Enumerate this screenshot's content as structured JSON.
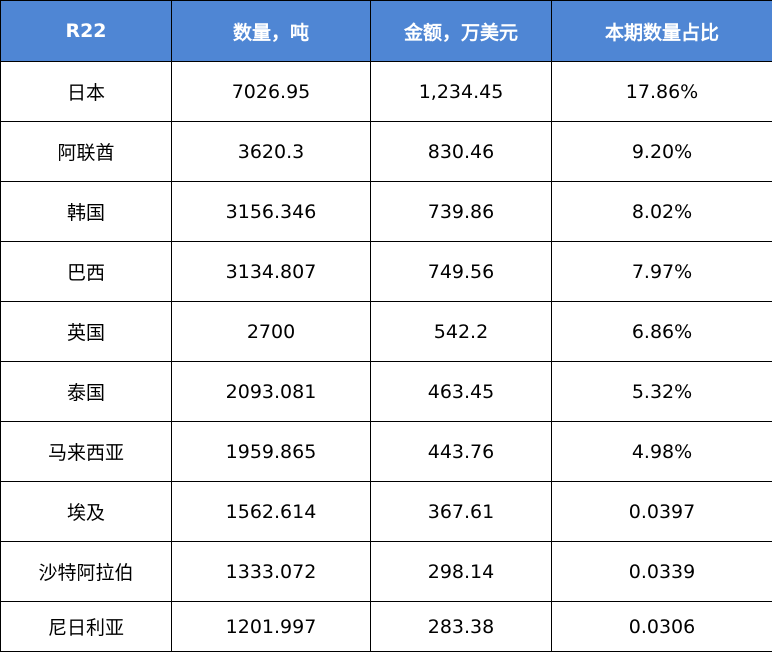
{
  "table": {
    "headers": [
      "R22",
      "数量，吨",
      "金额，万美元",
      "本期数量占比"
    ],
    "rows": [
      [
        "日本",
        "7026.95",
        "1,234.45",
        "17.86%"
      ],
      [
        "阿联酋",
        "3620.3",
        "830.46",
        "9.20%"
      ],
      [
        "韩国",
        "3156.346",
        "739.86",
        "8.02%"
      ],
      [
        "巴西",
        "3134.807",
        "749.56",
        "7.97%"
      ],
      [
        "英国",
        "2700",
        "542.2",
        "6.86%"
      ],
      [
        "泰国",
        "2093.081",
        "463.45",
        "5.32%"
      ],
      [
        "马来西亚",
        "1959.865",
        "443.76",
        "4.98%"
      ],
      [
        "埃及",
        "1562.614",
        "367.61",
        "0.0397"
      ],
      [
        "沙特阿拉伯",
        "1333.072",
        "298.14",
        "0.0339"
      ],
      [
        "尼日利亚",
        "1201.997",
        "283.38",
        "0.0306"
      ]
    ]
  },
  "colors": {
    "header_bg": "#4f86d4",
    "header_text": "#ffffff",
    "border": "#000000"
  }
}
